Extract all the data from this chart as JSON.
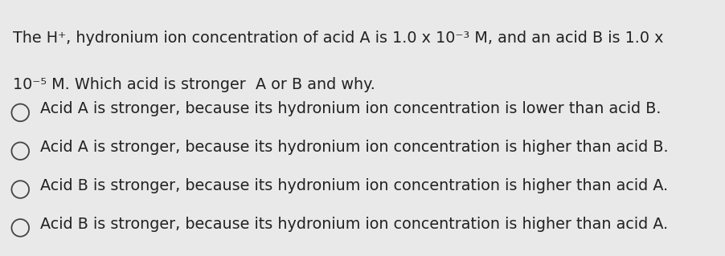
{
  "background_color": "#e9e9e9",
  "title_line1": "The H⁺, hydronium ion concentration of acid A is 1.0 x 10⁻³ M, and an acid B is 1.0 x",
  "title_line2": "10⁻⁵ M. Which acid is stronger  A or B and why.",
  "options": [
    "Acid A is stronger, because its hydronium ion concentration is lower than acid B.",
    "Acid A is stronger, because its hydronium ion concentration is higher than acid B.",
    "Acid B is stronger, because its hydronium ion concentration is higher than acid A.",
    "Acid B is stronger, because its hydronium ion concentration is higher than acid A."
  ],
  "text_color": "#222222",
  "circle_edge_color": "#444444",
  "font_size": 13.8,
  "fig_width": 9.02,
  "fig_height": 3.19,
  "dpi": 100
}
